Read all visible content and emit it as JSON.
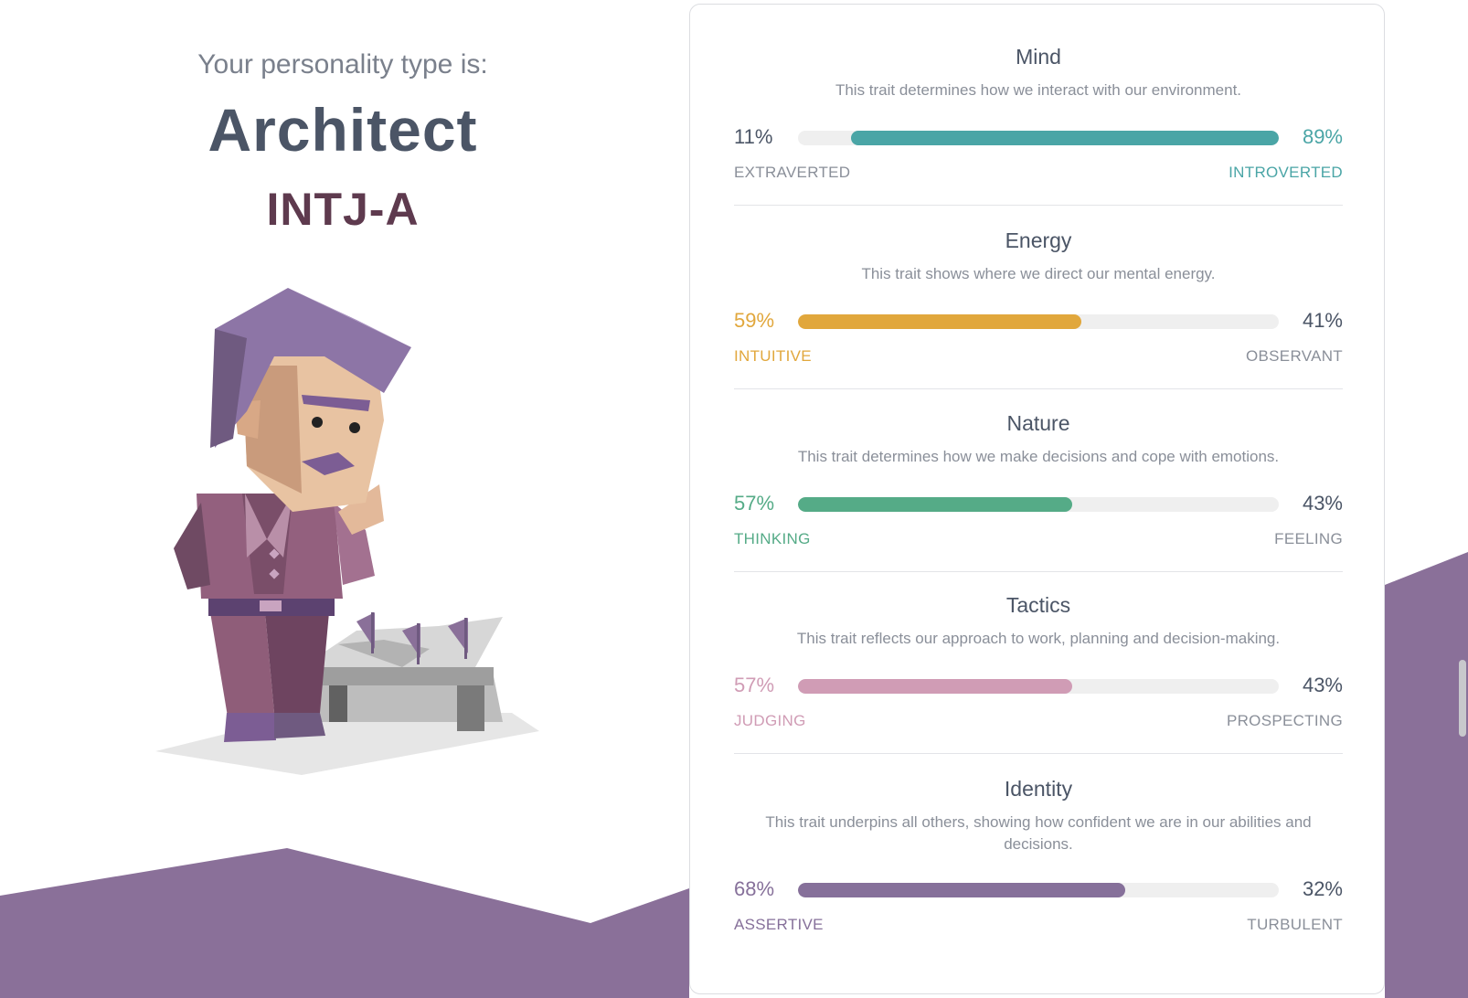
{
  "header": {
    "subtitle": "Your personality type is:",
    "type_name": "Architect",
    "type_code": "INTJ-A"
  },
  "colors": {
    "brand_purple": "#8a7099",
    "mind": "#4aa5a6",
    "energy": "#e1a73c",
    "nature": "#55ab87",
    "tactics": "#d09cb5",
    "identity": "#86709a",
    "neutral_text": "#4b5566"
  },
  "traits": [
    {
      "title": "Mind",
      "description": "This trait determines how we interact with our environment.",
      "left_pct_label": "11%",
      "right_pct_label": "89%",
      "left_label": "EXTRAVERTED",
      "right_label": "INTROVERTED",
      "dominant": "right",
      "dominant_percent": 89,
      "color": "#4aa5a6"
    },
    {
      "title": "Energy",
      "description": "This trait shows where we direct our mental energy.",
      "left_pct_label": "59%",
      "right_pct_label": "41%",
      "left_label": "INTUITIVE",
      "right_label": "OBSERVANT",
      "dominant": "left",
      "dominant_percent": 59,
      "color": "#e1a73c"
    },
    {
      "title": "Nature",
      "description": "This trait determines how we make decisions and cope with emotions.",
      "left_pct_label": "57%",
      "right_pct_label": "43%",
      "left_label": "THINKING",
      "right_label": "FEELING",
      "dominant": "left",
      "dominant_percent": 57,
      "color": "#55ab87"
    },
    {
      "title": "Tactics",
      "description": "This trait reflects our approach to work, planning and decision-making.",
      "left_pct_label": "57%",
      "right_pct_label": "43%",
      "left_label": "JUDGING",
      "right_label": "PROSPECTING",
      "dominant": "left",
      "dominant_percent": 57,
      "color": "#d09cb5"
    },
    {
      "title": "Identity",
      "description": "This trait underpins all others, showing how confident we are in our abilities and decisions.",
      "left_pct_label": "68%",
      "right_pct_label": "32%",
      "left_label": "ASSERTIVE",
      "right_label": "TURBULENT",
      "dominant": "left",
      "dominant_percent": 68,
      "color": "#86709a"
    }
  ],
  "illustration": {
    "icon": "architect-character-illustration"
  }
}
